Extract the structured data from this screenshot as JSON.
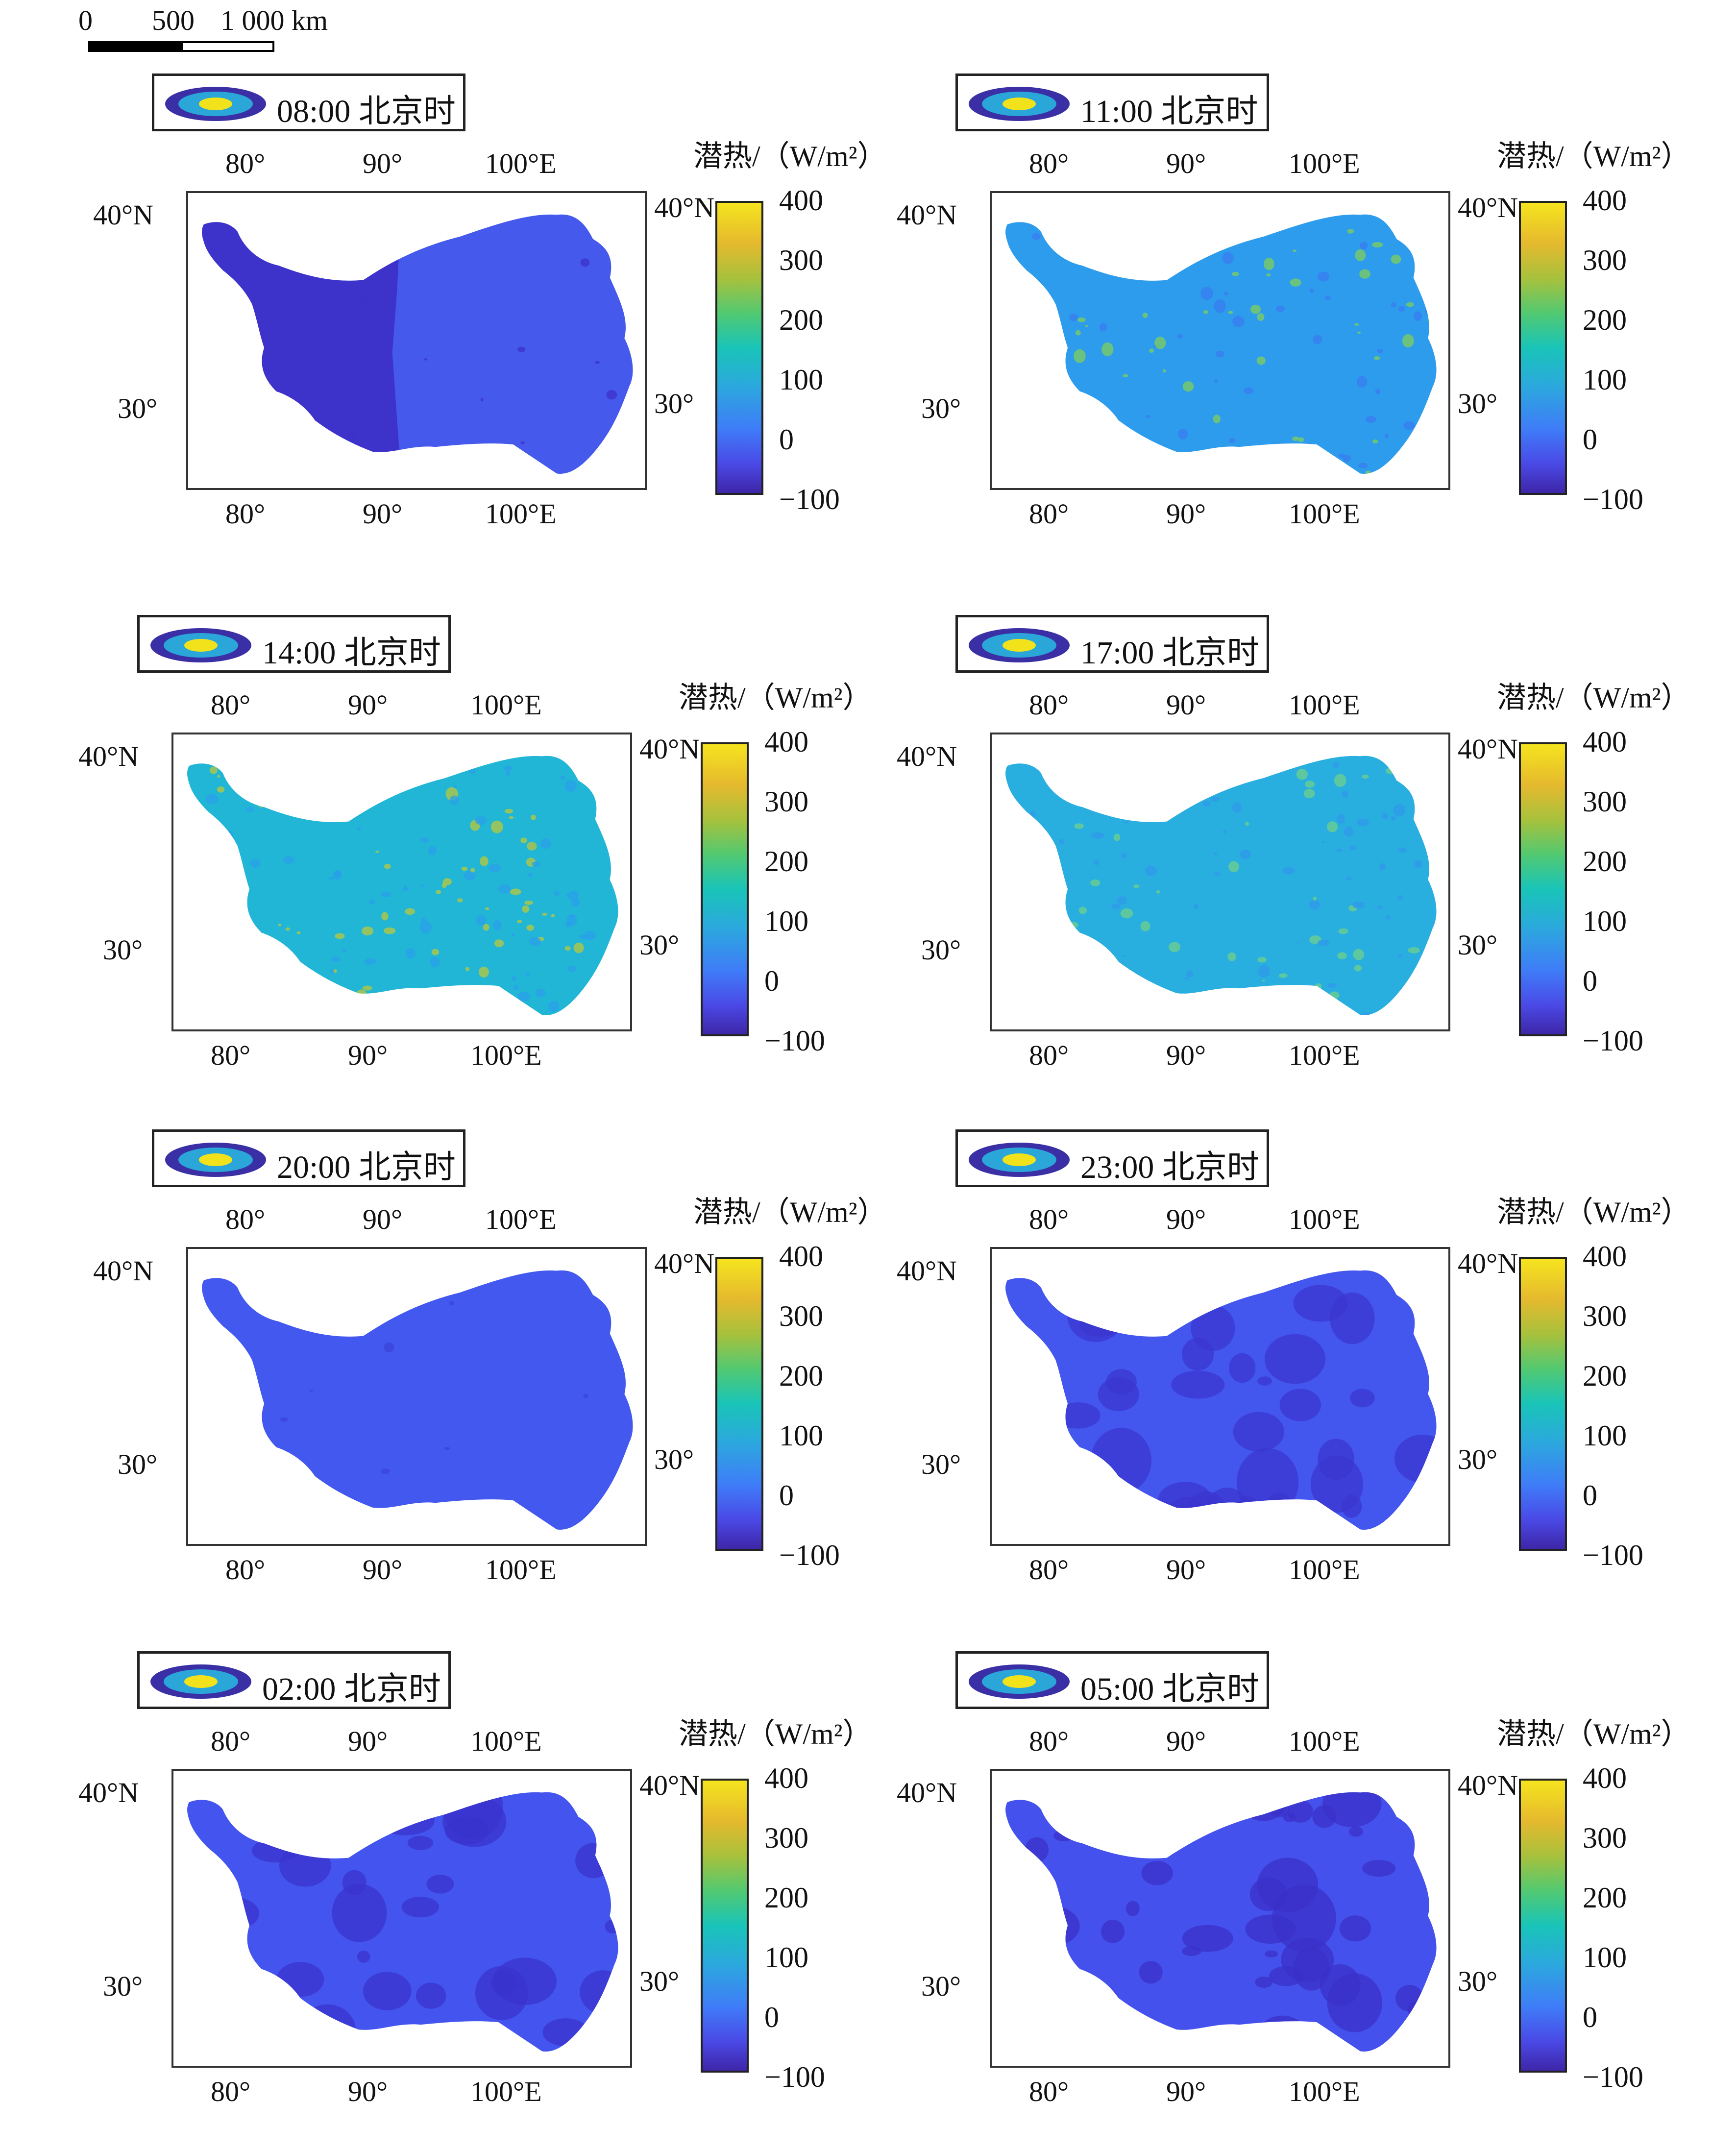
{
  "scale_bar": {
    "labels": [
      "0",
      "500",
      "1 000 km"
    ]
  },
  "colorbar": {
    "title": "潜热/（W/m²）",
    "ticks": [
      "400",
      "300",
      "200",
      "100",
      "0",
      "−100"
    ],
    "colors": [
      "#3e26a8",
      "#4a49e6",
      "#3f7cf8",
      "#2ba9dd",
      "#19c4b8",
      "#52c971",
      "#a8c13c",
      "#e5b92e",
      "#f5e41e"
    ]
  },
  "axes": {
    "top_lon": [
      "80°",
      "90°",
      "100°E"
    ],
    "bottom_lon": [
      "80°",
      "90°",
      "100°E"
    ],
    "left_lat": [
      "40°N",
      "30°"
    ],
    "right_lat": [
      "40°N",
      "30°"
    ]
  },
  "panels": [
    {
      "title": "08:00 北京时",
      "fill": "#4559ec",
      "dark": "#3d32c9",
      "accent": "#4559ec",
      "patch_level": "west-dark"
    },
    {
      "title": "11:00 北京时",
      "fill": "#2e9cec",
      "dark": "#3a7cf0",
      "accent": "#7fcf5a",
      "patch_level": "speckled"
    },
    {
      "title": "14:00 北京时",
      "fill": "#21b6d6",
      "dark": "#2a9fe8",
      "accent": "#b9c83a",
      "patch_level": "speckled-strong"
    },
    {
      "title": "17:00 北京时",
      "fill": "#29aee0",
      "dark": "#2f98ea",
      "accent": "#6fd08a",
      "patch_level": "speckled"
    },
    {
      "title": "20:00 北京时",
      "fill": "#4258ef",
      "dark": "#3c44d8",
      "accent": "#4258ef",
      "patch_level": "light"
    },
    {
      "title": "23:00 北京时",
      "fill": "#4356ee",
      "dark": "#3b36cf",
      "accent": "#4356ee",
      "patch_level": "patchy"
    },
    {
      "title": "02:00 北京时",
      "fill": "#4355ee",
      "dark": "#3a33cd",
      "accent": "#4355ee",
      "patch_level": "patchy"
    },
    {
      "title": "05:00 北京时",
      "fill": "#4451ec",
      "dark": "#3930c8",
      "accent": "#4451ec",
      "patch_level": "patchy-strong"
    }
  ]
}
